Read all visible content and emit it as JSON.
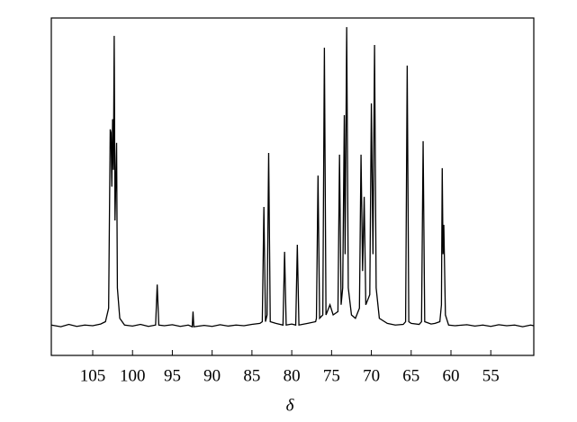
{
  "chart_data": {
    "type": "line",
    "x_label": "δ",
    "xlim": [
      110.2,
      49.6
    ],
    "ylim": [
      0,
      100
    ],
    "xticks": [
      105,
      100,
      95,
      90,
      85,
      80,
      75,
      70,
      65,
      60,
      55
    ],
    "series": [
      {
        "color": "#000000",
        "x": [
          110.2,
          109,
          108,
          107,
          106,
          105,
          104,
          103.4,
          103.0,
          102.8,
          102.7,
          102.6,
          102.5,
          102.4,
          102.3,
          102.2,
          102.0,
          101.9,
          101.6,
          101,
          100,
          99,
          98,
          97.1,
          96.9,
          96.7,
          96,
          95,
          94,
          93,
          92.5,
          92.4,
          92.3,
          91,
          90,
          89,
          88,
          87,
          86,
          85,
          84,
          83.7,
          83.5,
          83.3,
          83.1,
          82.9,
          82.7,
          82,
          81.1,
          80.9,
          80.7,
          80,
          79.5,
          79.3,
          79.1,
          78,
          77,
          76.9,
          76.7,
          76.5,
          76.1,
          75.9,
          75.7,
          75.2,
          74.8,
          74.2,
          74.0,
          73.8,
          73.6,
          73.4,
          73.3,
          73.1,
          72.9,
          72.5,
          72,
          71.5,
          71.3,
          71.1,
          70.9,
          70.7,
          70.2,
          70.0,
          69.8,
          69.6,
          69.4,
          69.0,
          68,
          67,
          66,
          65.7,
          65.5,
          65.3,
          65,
          64,
          63.7,
          63.5,
          63.3,
          62.5,
          62,
          61.4,
          61.2,
          61.1,
          61.0,
          60.9,
          60.7,
          60.3,
          59.5,
          58,
          57,
          56,
          55,
          54,
          53,
          52,
          51,
          50,
          49.6
        ],
        "values": [
          9,
          8.5,
          9.2,
          8.6,
          9,
          8.8,
          9.3,
          10,
          14,
          67,
          66,
          50,
          70,
          55,
          94.7,
          40,
          63,
          20,
          11,
          9,
          8.7,
          9.2,
          8.6,
          9,
          21,
          9,
          8.8,
          9.1,
          8.6,
          9,
          8.5,
          13,
          8.5,
          8.9,
          8.6,
          9.1,
          8.7,
          9,
          8.8,
          9.2,
          9.5,
          10,
          44,
          10,
          12,
          60,
          10,
          9.5,
          9,
          30.7,
          9,
          9.3,
          9,
          32.8,
          9,
          9.5,
          10,
          11,
          53.3,
          11,
          12,
          91.2,
          12,
          15,
          12,
          13,
          59.5,
          15,
          20,
          71.2,
          30,
          97.3,
          20,
          12,
          11,
          14,
          59.5,
          25,
          47,
          15,
          18,
          74.7,
          30,
          92,
          20,
          11,
          9.5,
          9,
          9.2,
          10,
          85.9,
          10,
          9.5,
          9.2,
          10,
          63.5,
          10,
          9.3,
          9.5,
          10,
          15,
          55.5,
          30,
          38.7,
          12,
          9,
          8.8,
          9.1,
          8.7,
          9,
          8.6,
          9.1,
          8.8,
          9,
          8.5,
          9,
          8.8
        ]
      }
    ]
  }
}
